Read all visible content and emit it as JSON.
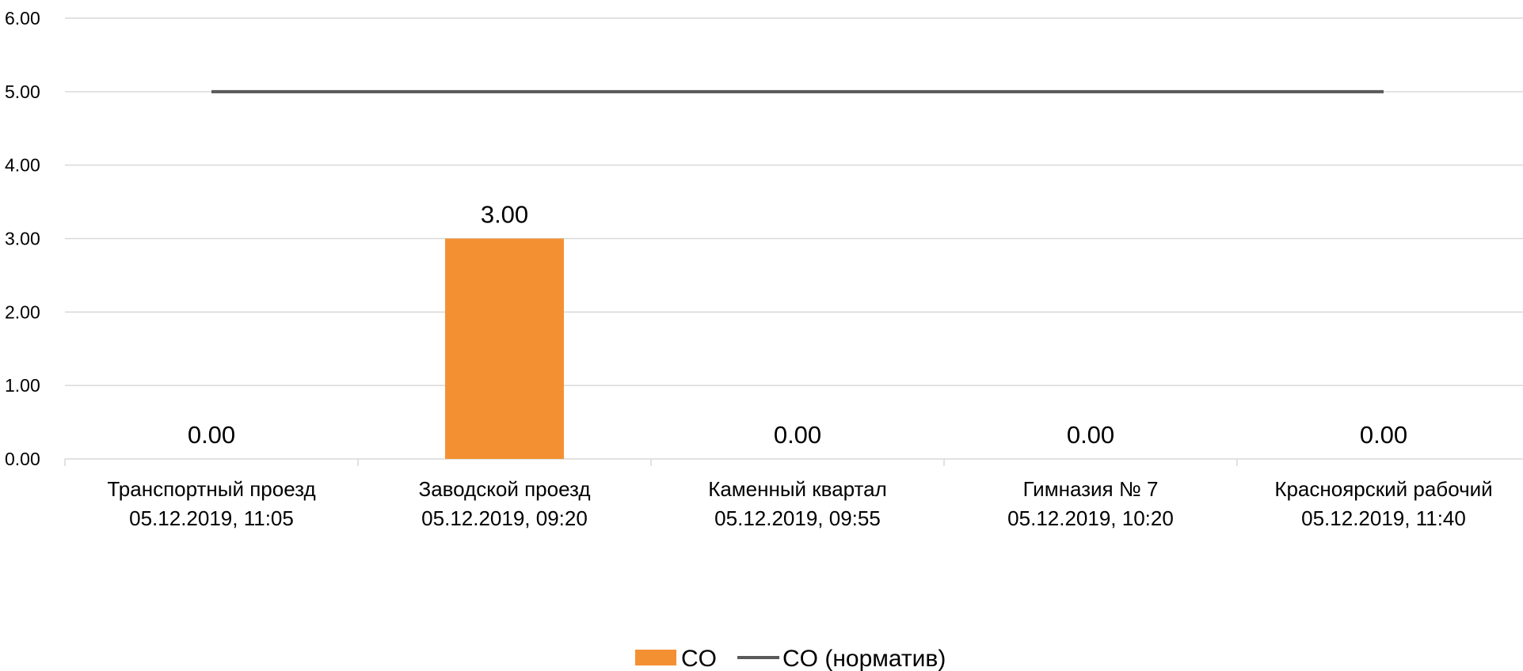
{
  "chart_data": {
    "type": "bar",
    "categories": [
      [
        "Транспортный проезд",
        "05.12.2019, 11:05"
      ],
      [
        "Заводской проезд",
        "05.12.2019, 09:20"
      ],
      [
        "Каменный квартал",
        "05.12.2019, 09:55"
      ],
      [
        "Гимназия № 7",
        "05.12.2019, 10:20"
      ],
      [
        "Красноярский рабочий",
        "05.12.2019, 11:40"
      ]
    ],
    "series": [
      {
        "name": "CO",
        "kind": "bar",
        "color": "#f39132",
        "values": [
          0,
          3,
          0,
          0,
          0
        ],
        "data_labels": [
          "0.00",
          "3.00",
          "0.00",
          "0.00",
          "0.00"
        ]
      },
      {
        "name": "CO (норматив)",
        "kind": "line",
        "color": "#595959",
        "values": [
          5,
          5,
          5,
          5,
          5
        ]
      }
    ],
    "yticks": [
      "0.00",
      "1.00",
      "2.00",
      "3.00",
      "4.00",
      "5.00",
      "6.00"
    ],
    "ylim": [
      0,
      6
    ],
    "grid": true,
    "legend_position": "bottom",
    "title": "",
    "xlabel": "",
    "ylabel": ""
  }
}
